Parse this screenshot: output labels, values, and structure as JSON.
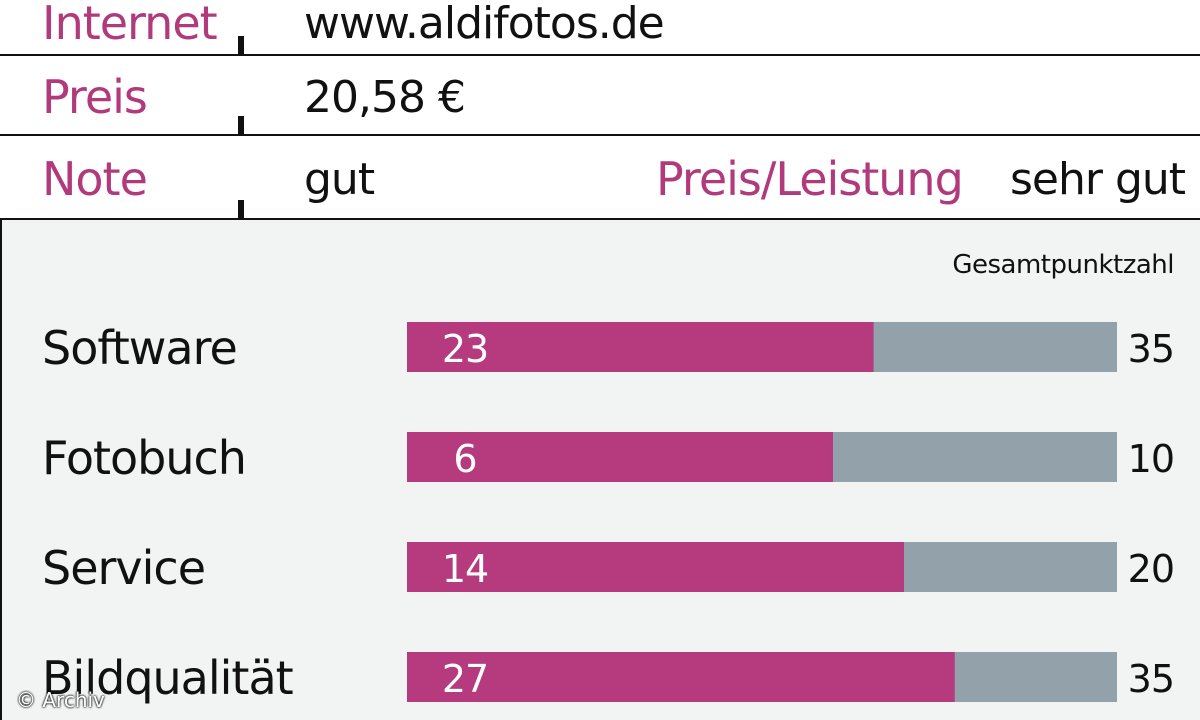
{
  "info": {
    "rows": [
      {
        "label": "Internet",
        "value": "www.aldifotos.de"
      },
      {
        "label": "Preis",
        "value": "20,58 €"
      },
      {
        "label": "Note",
        "value": "gut",
        "label2": "Preis/Leistung",
        "value2": "sehr gut"
      }
    ]
  },
  "colors": {
    "accent": "#b13a7d",
    "bar_score": "#b53a7e",
    "bar_total": "#93a1aa",
    "panel_bg": "#f2f3f3"
  },
  "chart_data": {
    "type": "bar",
    "orientation": "horizontal",
    "column_header": "Gesamtpunktzahl",
    "categories": [
      "Software",
      "Fotobuch",
      "Service",
      "Bildqualität"
    ],
    "series": [
      {
        "values": [
          23,
          6,
          14,
          27
        ]
      },
      {
        "name": "Gesamtpunktzahl",
        "values": [
          35,
          10,
          20,
          35
        ]
      }
    ],
    "grid": false
  },
  "copyright": "© Archiv"
}
